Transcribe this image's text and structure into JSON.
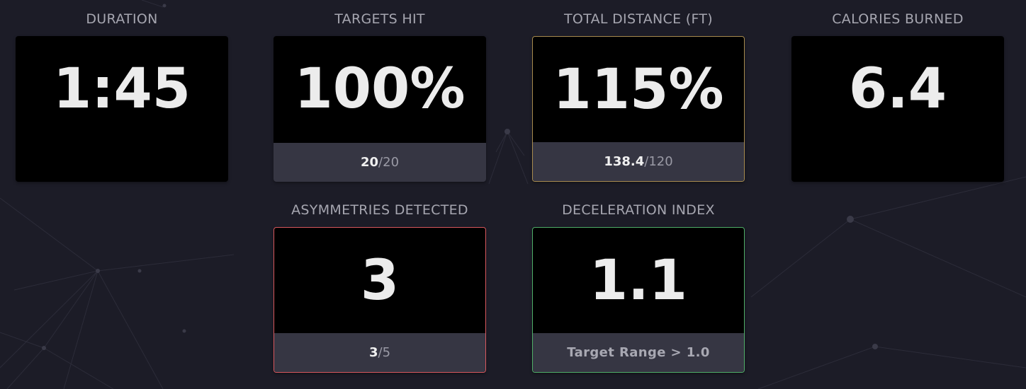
{
  "metrics": {
    "duration": {
      "label": "DURATION",
      "value": "1:45"
    },
    "targets_hit": {
      "label": "TARGETS HIT",
      "value": "100%",
      "numerator": "20",
      "denominator": "/20"
    },
    "total_distance": {
      "label": "TOTAL DISTANCE (FT)",
      "value": "115%",
      "numerator": "138.4",
      "denominator": "/120"
    },
    "calories": {
      "label": "CALORIES BURNED",
      "value": "6.4"
    },
    "asymmetries": {
      "label": "ASYMMETRIES DETECTED",
      "value": "3",
      "numerator": "3",
      "denominator": "/5"
    },
    "deceleration": {
      "label": "DECELERATION INDEX",
      "value": "1.1",
      "footer": "Target Range > 1.0"
    }
  },
  "colors": {
    "background": "#1c1c27",
    "card": "#000000",
    "footer": "#363643",
    "gold_border": "#a78b4e",
    "red_border": "#d9585e",
    "green_border": "#4fae68"
  }
}
